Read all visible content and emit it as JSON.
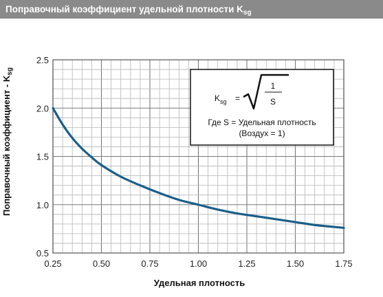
{
  "header": {
    "title": "Поправочный коэффициент удельной плотности K",
    "title_sub": "sg"
  },
  "chart_data": {
    "type": "line",
    "title": "Поправочный коэффициент удельной плотности Ksg",
    "xlabel": "Удельная плотность",
    "ylabel": "Поправочный коэффициент - K",
    "ylabel_sub": "sg",
    "xlim": [
      0.25,
      1.75
    ],
    "ylim": [
      0.5,
      2.5
    ],
    "x_ticks": [
      "0.25",
      "0.50",
      "0.75",
      "1.00",
      "1.25",
      "1.50",
      "1.75"
    ],
    "y_ticks": [
      "2.5",
      "2.0",
      "1.5",
      "1.0",
      "0.5"
    ],
    "grid": true,
    "series": [
      {
        "x": [
          0.25,
          0.3,
          0.35,
          0.4,
          0.45,
          0.5,
          0.6,
          0.7,
          0.8,
          0.9,
          1.0,
          1.1,
          1.2,
          1.3,
          1.4,
          1.5,
          1.6,
          1.7,
          1.75
        ],
        "y": [
          2.0,
          1.83,
          1.69,
          1.58,
          1.49,
          1.41,
          1.29,
          1.2,
          1.12,
          1.05,
          1.0,
          0.95,
          0.91,
          0.88,
          0.85,
          0.82,
          0.79,
          0.77,
          0.76
        ]
      }
    ],
    "colors": {
      "line": "#1a5e8a",
      "grid": "#b5b5b5",
      "grid_major": "#7a7a7a",
      "title_bar": "#8a8a8a"
    }
  },
  "formula": {
    "lhs": "K",
    "lhs_sub": "sg",
    "equals": "=",
    "numerator": "1",
    "denominator": "S",
    "line1": "Где S = Удельная плотность",
    "line2": "(Воздух = 1)"
  }
}
